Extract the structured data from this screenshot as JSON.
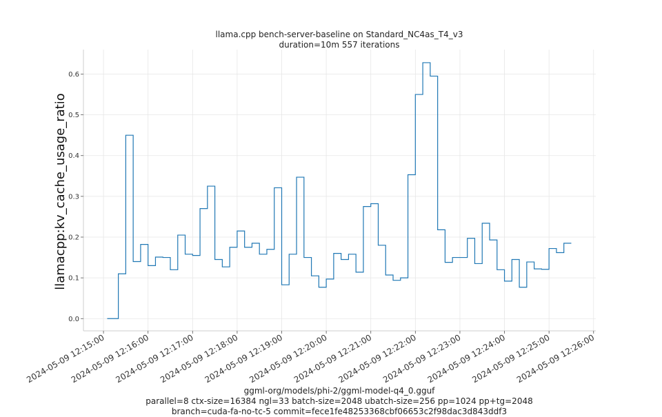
{
  "chart_data": {
    "type": "line",
    "title": "llama.cpp bench-server-baseline on Standard_NC4as_T4_v3",
    "subtitle": "duration=10m 557 iterations",
    "ylabel": "llamacpp:kv_cache_usage_ratio",
    "xlabel_lines": [
      "ggml-org/models/phi-2/ggml-model-q4_0.gguf",
      "parallel=8 ctx-size=16384 ngl=33 batch-size=2048 ubatch-size=256 pp=1024 pp+tg=2048",
      "branch=cuda-fa-no-tc-5 commit=fece1fe48253368cbf06653c2f98dac3d843ddf3"
    ],
    "x_ticks": [
      "2024-05-09 12:15:00",
      "2024-05-09 12:16:00",
      "2024-05-09 12:17:00",
      "2024-05-09 12:18:00",
      "2024-05-09 12:19:00",
      "2024-05-09 12:20:00",
      "2024-05-09 12:21:00",
      "2024-05-09 12:22:00",
      "2024-05-09 12:23:00",
      "2024-05-09 12:24:00",
      "2024-05-09 12:25:00",
      "2024-05-09 12:26:00"
    ],
    "y_ticks": [
      "0.0",
      "0.1",
      "0.2",
      "0.3",
      "0.4",
      "0.5",
      "0.6"
    ],
    "ylim": [
      -0.03,
      0.66
    ],
    "xlim": [
      "2024-05-09 12:14:33",
      "2024-05-09 12:26:03"
    ],
    "grid": true,
    "line_color": "#1f77b4",
    "series": [
      {
        "x": [
          "12:15:05",
          "12:15:10",
          "12:15:15",
          "12:15:20",
          "12:15:25",
          "12:15:30",
          "12:15:35",
          "12:15:40",
          "12:15:45",
          "12:15:50",
          "12:15:55",
          "12:16:00",
          "12:16:05",
          "12:16:10",
          "12:16:15",
          "12:16:20",
          "12:16:25",
          "12:16:30",
          "12:16:35",
          "12:16:40",
          "12:16:45",
          "12:16:50",
          "12:16:55",
          "12:17:00",
          "12:17:05",
          "12:17:10",
          "12:17:15",
          "12:17:20",
          "12:17:25",
          "12:17:30",
          "12:17:35",
          "12:17:40",
          "12:17:45",
          "12:17:50",
          "12:17:55",
          "12:18:00",
          "12:18:05",
          "12:18:10",
          "12:18:15",
          "12:18:20",
          "12:18:25",
          "12:18:30",
          "12:18:35",
          "12:18:40",
          "12:18:45",
          "12:18:50",
          "12:18:55",
          "12:19:00",
          "12:19:05",
          "12:19:10",
          "12:19:15",
          "12:19:20",
          "12:19:25",
          "12:19:30",
          "12:19:35",
          "12:19:40",
          "12:19:45",
          "12:19:50",
          "12:19:55",
          "12:20:00",
          "12:20:05",
          "12:20:10",
          "12:20:15",
          "12:20:20",
          "12:20:25",
          "12:20:30",
          "12:20:35",
          "12:20:40",
          "12:20:45",
          "12:20:50",
          "12:20:55",
          "12:21:00",
          "12:21:05",
          "12:21:10",
          "12:21:15",
          "12:21:20",
          "12:21:25",
          "12:21:30",
          "12:21:35",
          "12:21:40",
          "12:21:45",
          "12:21:50",
          "12:21:55",
          "12:22:00",
          "12:22:05",
          "12:22:10",
          "12:22:15",
          "12:22:20",
          "12:22:25",
          "12:22:30",
          "12:22:35",
          "12:22:40",
          "12:22:45",
          "12:22:50",
          "12:22:55",
          "12:23:00",
          "12:23:05",
          "12:23:10",
          "12:23:15",
          "12:23:20",
          "12:23:25",
          "12:23:30",
          "12:23:35",
          "12:23:40",
          "12:23:45",
          "12:23:50",
          "12:23:55",
          "12:24:00",
          "12:24:05",
          "12:24:10",
          "12:24:15",
          "12:24:20",
          "12:24:25",
          "12:24:30",
          "12:24:35",
          "12:24:40",
          "12:24:45",
          "12:24:50",
          "12:24:55",
          "12:25:00",
          "12:25:05",
          "12:25:10",
          "12:25:15",
          "12:25:20",
          "12:25:25",
          "12:25:30"
        ],
        "values": [
          0.0,
          0.0,
          0.0,
          0.0,
          0.11,
          0.11,
          0.45,
          0.45,
          0.14,
          0.14,
          0.182,
          0.182,
          0.13,
          0.13,
          0.151,
          0.151,
          0.15,
          0.15,
          0.12,
          0.12,
          0.205,
          0.205,
          0.158,
          0.158,
          0.155,
          0.155,
          0.27,
          0.27,
          0.325,
          0.325,
          0.145,
          0.145,
          0.127,
          0.127,
          0.175,
          0.175,
          0.215,
          0.215,
          0.175,
          0.175,
          0.185,
          0.185,
          0.158,
          0.158,
          0.17,
          0.17,
          0.321,
          0.321,
          0.083,
          0.083,
          0.158,
          0.158,
          0.347,
          0.347,
          0.15,
          0.15,
          0.105,
          0.105,
          0.077,
          0.077,
          0.097,
          0.097,
          0.16,
          0.16,
          0.145,
          0.145,
          0.158,
          0.158,
          0.114,
          0.114,
          0.275,
          0.275,
          0.282,
          0.282,
          0.18,
          0.18,
          0.107,
          0.107,
          0.094,
          0.094,
          0.1,
          0.1,
          0.353,
          0.353,
          0.55,
          0.55,
          0.628,
          0.628,
          0.595,
          0.595,
          0.218,
          0.218,
          0.138,
          0.138,
          0.15,
          0.15,
          0.15,
          0.15,
          0.197,
          0.197,
          0.135,
          0.135,
          0.234,
          0.234,
          0.193,
          0.193,
          0.12,
          0.12,
          0.092,
          0.092,
          0.145,
          0.145,
          0.077,
          0.077,
          0.139,
          0.139,
          0.122,
          0.122,
          0.121,
          0.121,
          0.172,
          0.172,
          0.162,
          0.162,
          0.185,
          0.185
        ]
      }
    ]
  }
}
